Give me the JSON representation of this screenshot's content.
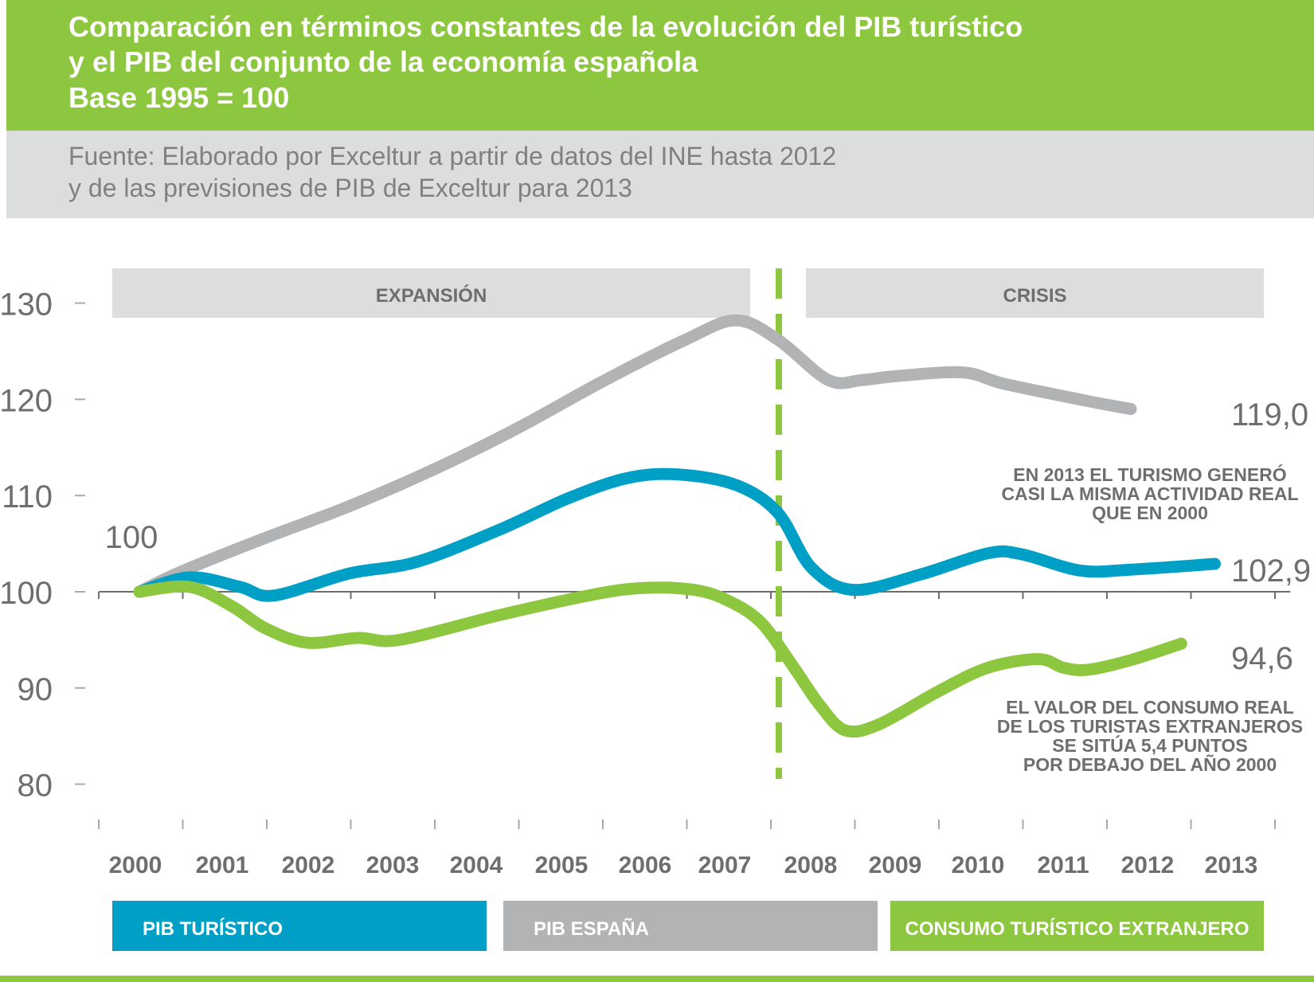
{
  "header": {
    "title_lines": [
      "Comparación en términos constantes de la evolución del PIB turístico",
      "y el PIB del conjunto de la economía española",
      "Base 1995 = 100"
    ],
    "source_lines": [
      "Fuente:  Elaborado por Exceltur a partir de datos del INE hasta 2012",
      "y de las previsiones de PIB de Exceltur para 2013"
    ]
  },
  "colors": {
    "title_band": "#8dc63f",
    "source_band": "#dcdddd",
    "pib_turistico": "#00a0c6",
    "pib_espana": "#b1b3b4",
    "consumo": "#8dc63f",
    "text": "#6d6e70"
  },
  "chart_data": {
    "type": "line",
    "x": [
      "2000",
      "2001",
      "2002",
      "2003",
      "2004",
      "2005",
      "2006",
      "2007",
      "2008",
      "2009",
      "2010",
      "2011",
      "2012",
      "2013"
    ],
    "ylim": [
      80,
      130
    ],
    "yticks": [
      80,
      90,
      100,
      110,
      120,
      130
    ],
    "start_label": "100",
    "phases": [
      {
        "label": "EXPANSIÓN",
        "from": "2000",
        "to": "2007"
      },
      {
        "label": "CRISIS",
        "from": "2008",
        "to": "2013"
      }
    ],
    "divider_between": [
      "2007",
      "2008"
    ],
    "series": [
      {
        "name": "PIB ESPAÑA",
        "color": "#b1b3b4",
        "end_label": "119,0",
        "points": [
          [
            2000,
            100
          ],
          [
            2000.5,
            102.1
          ],
          [
            2001.5,
            105.6
          ],
          [
            2002.5,
            108.9
          ],
          [
            2003.5,
            112.7
          ],
          [
            2004.5,
            117
          ],
          [
            2005.5,
            121.8
          ],
          [
            2006.5,
            126.2
          ],
          [
            2007.1,
            128.2
          ],
          [
            2007.6,
            126.2
          ],
          [
            2008.2,
            122
          ],
          [
            2008.6,
            122
          ],
          [
            2009,
            122.4
          ],
          [
            2009.8,
            122.8
          ],
          [
            2010.3,
            121.6
          ],
          [
            2011.3,
            119.8
          ],
          [
            2011.8,
            119
          ]
        ]
      },
      {
        "name": "PIB TURÍSTICO",
        "color": "#00a0c6",
        "end_label": "102,9",
        "points": [
          [
            2000,
            100
          ],
          [
            2000.6,
            101.5
          ],
          [
            2001.2,
            100.5
          ],
          [
            2001.6,
            99.6
          ],
          [
            2002.5,
            101.9
          ],
          [
            2003.3,
            103.1
          ],
          [
            2004.3,
            106.5
          ],
          [
            2005.1,
            109.7
          ],
          [
            2005.8,
            111.8
          ],
          [
            2006.4,
            112.2
          ],
          [
            2007.1,
            111.1
          ],
          [
            2007.6,
            108.2
          ],
          [
            2008,
            102.5
          ],
          [
            2008.5,
            100.2
          ],
          [
            2009.3,
            101.8
          ],
          [
            2010.1,
            104
          ],
          [
            2010.5,
            103.9
          ],
          [
            2011.2,
            102.2
          ],
          [
            2011.8,
            102.3
          ],
          [
            2012.8,
            102.9
          ]
        ]
      },
      {
        "name": "CONSUMO TURÍSTICO EXTRANJERO",
        "color": "#8dc63f",
        "end_label": "94,6",
        "points": [
          [
            2000,
            100
          ],
          [
            2000.6,
            100.5
          ],
          [
            2001.1,
            98.5
          ],
          [
            2001.5,
            96.2
          ],
          [
            2002,
            94.7
          ],
          [
            2002.6,
            95.2
          ],
          [
            2003.1,
            95
          ],
          [
            2004.3,
            97.6
          ],
          [
            2005.4,
            99.7
          ],
          [
            2006,
            100.4
          ],
          [
            2006.6,
            100.2
          ],
          [
            2007,
            99.1
          ],
          [
            2007.4,
            96.8
          ],
          [
            2007.8,
            92
          ],
          [
            2008.1,
            88.2
          ],
          [
            2008.4,
            85.6
          ],
          [
            2008.8,
            86.2
          ],
          [
            2009.5,
            89.6
          ],
          [
            2010.1,
            92.1
          ],
          [
            2010.7,
            93
          ],
          [
            2011,
            92.1
          ],
          [
            2011.3,
            91.9
          ],
          [
            2011.8,
            92.9
          ],
          [
            2012.4,
            94.6
          ]
        ]
      }
    ],
    "annotations": [
      {
        "lines": [
          "EN 2013 EL TURISMO GENERÓ",
          "CASI LA MISMA ACTIVIDAD REAL",
          "QUE EN 2000"
        ]
      },
      {
        "lines": [
          "EL VALOR DEL CONSUMO REAL",
          "DE LOS TURISTAS EXTRANJEROS",
          "SE SITÚA 5,4 PUNTOS",
          "POR DEBAJO DEL AÑO 2000"
        ]
      }
    ],
    "legend": [
      {
        "label": "PIB TURÍSTICO",
        "color": "#00a0c6"
      },
      {
        "label": "PIB ESPAÑA",
        "color": "#b1b3b4"
      },
      {
        "label": "CONSUMO TURÍSTICO EXTRANJERO",
        "color": "#8dc63f"
      }
    ]
  }
}
